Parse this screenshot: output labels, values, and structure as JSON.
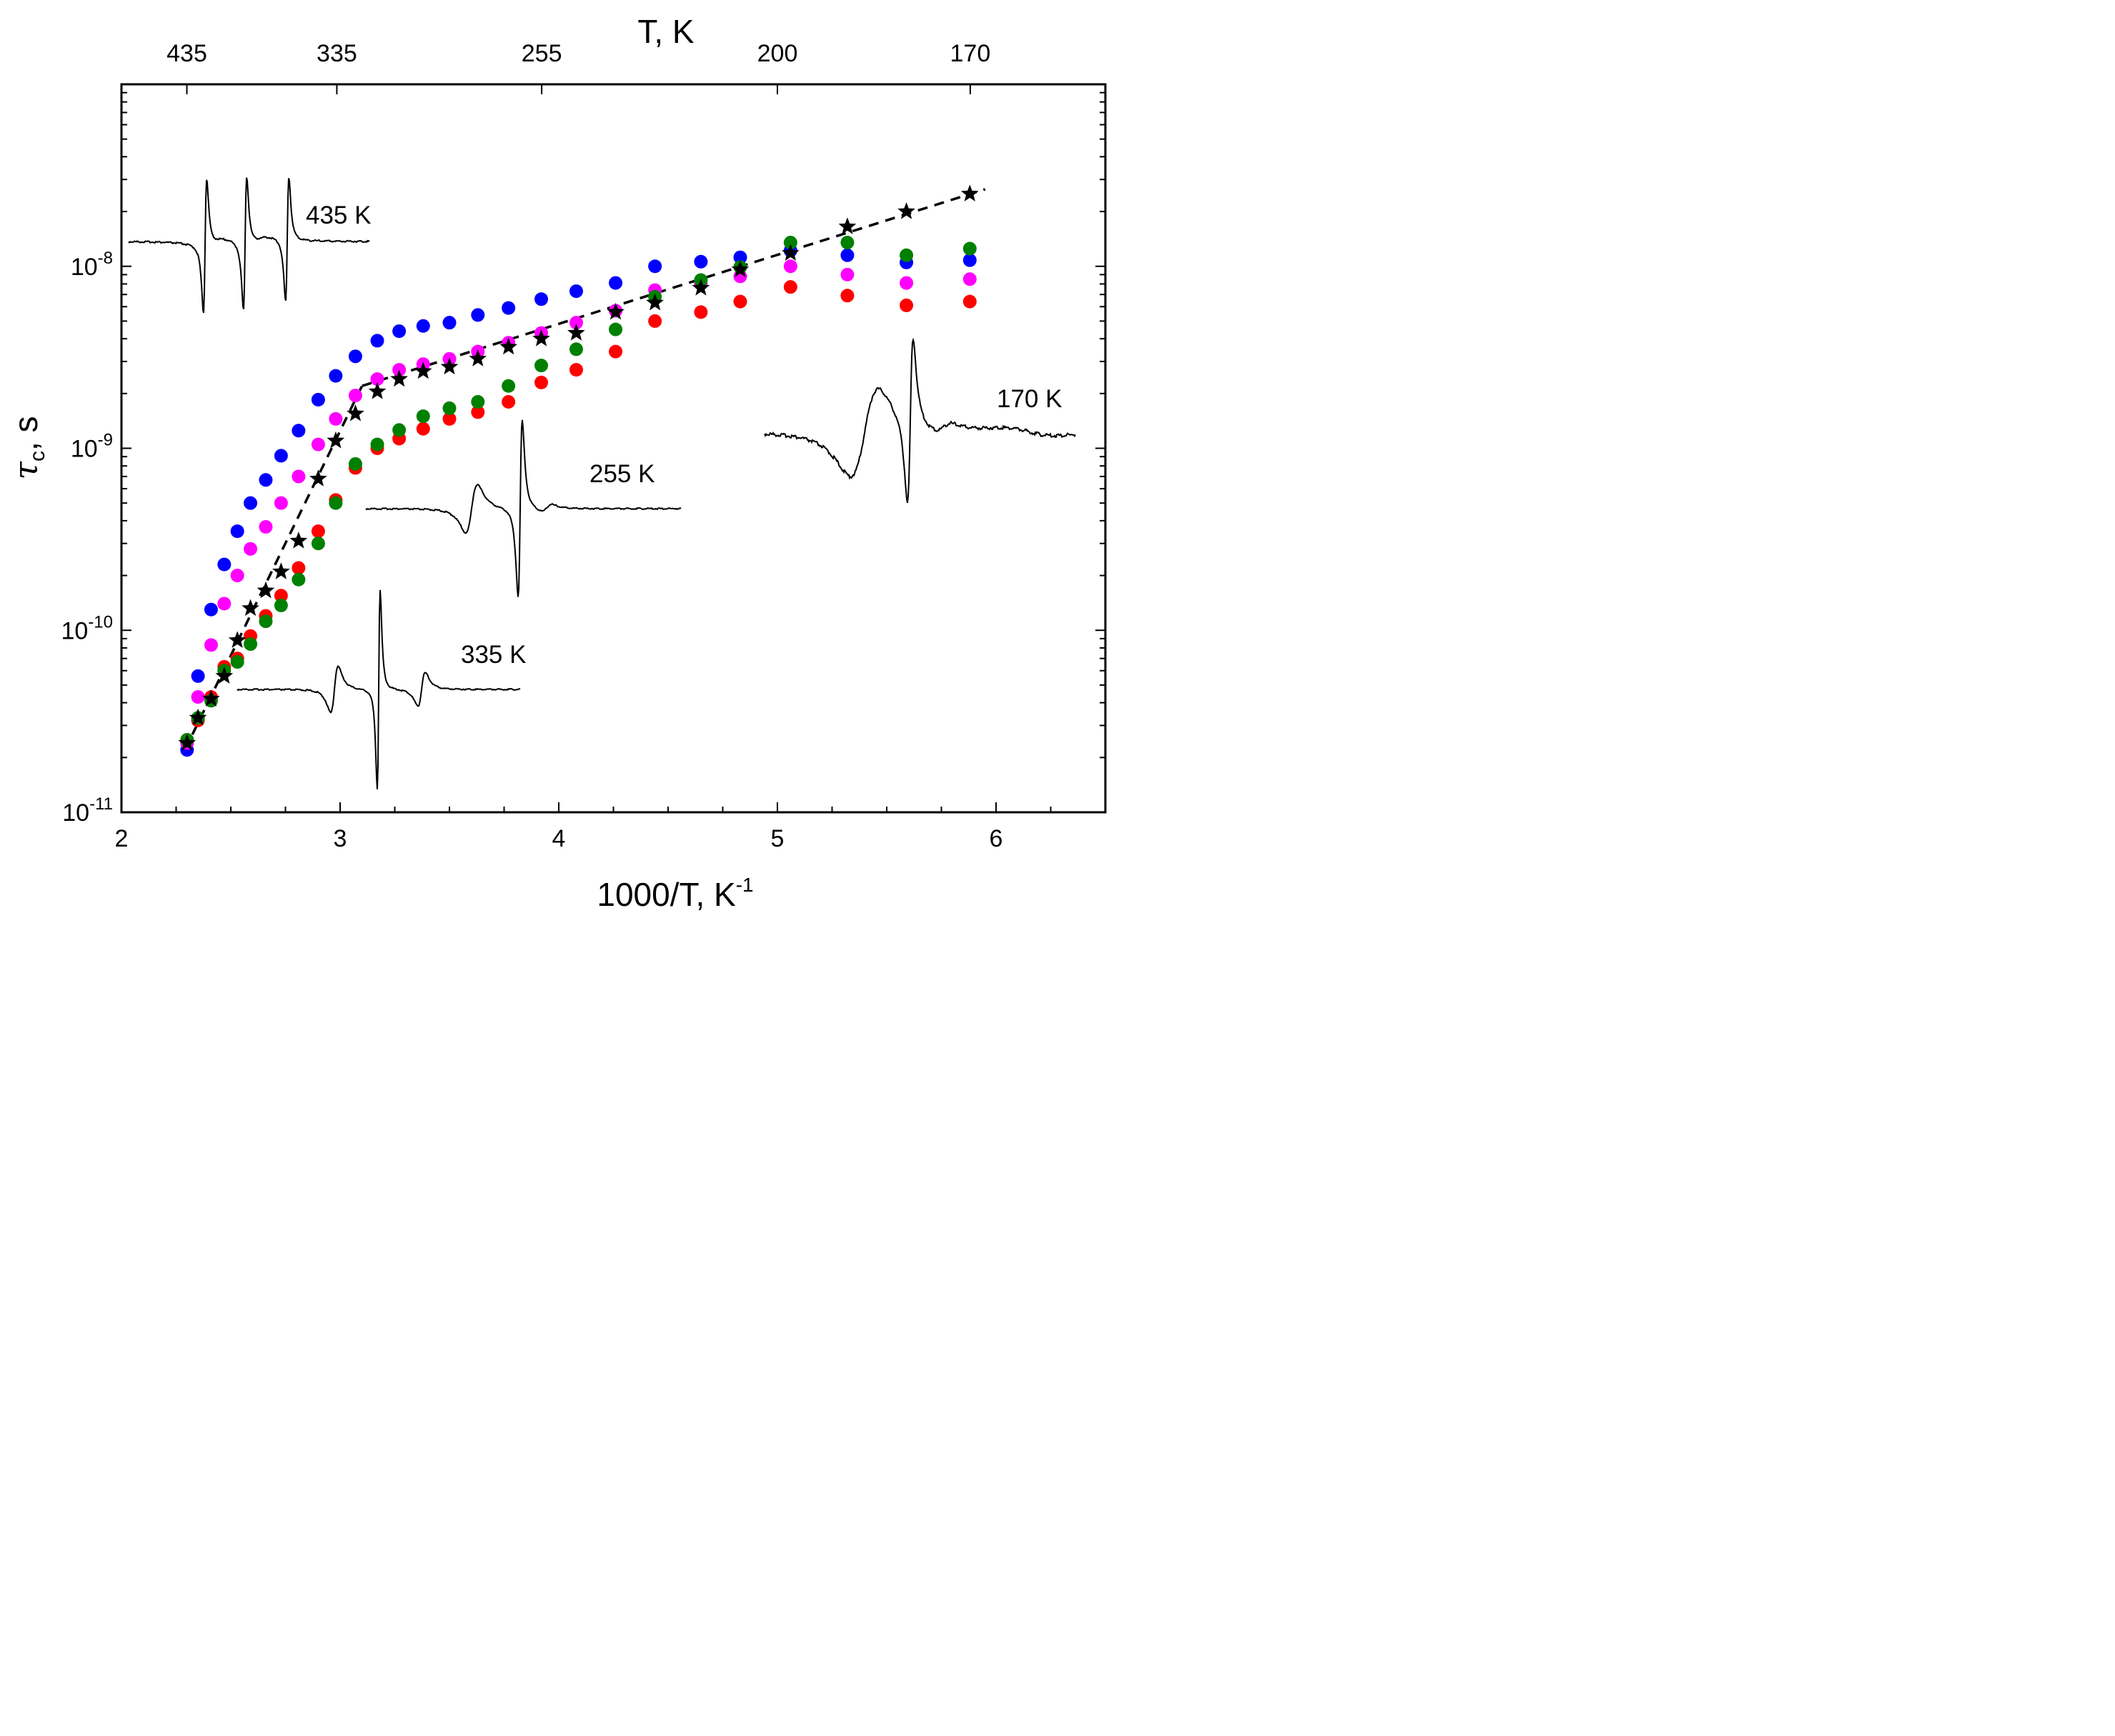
{
  "chart_data": {
    "type": "scatter",
    "xlabel": "1000/T, K",
    "xlabel_sup": "-1",
    "ylabel": "τ",
    "ylabel_sub": "c",
    "ylabel_unit": ", s",
    "xlim": [
      2,
      6.5
    ],
    "ylim": [
      1e-11,
      1e-07
    ],
    "yscale": "log",
    "grid": false,
    "legend": "none",
    "x_ticks": [
      {
        "value": 2,
        "label": "2"
      },
      {
        "value": 3,
        "label": "3"
      },
      {
        "value": 4,
        "label": "4"
      },
      {
        "value": 5,
        "label": "5"
      },
      {
        "value": 6,
        "label": "6"
      }
    ],
    "y_ticks": [
      {
        "value": 1e-11,
        "base": "10",
        "exp": "-11"
      },
      {
        "value": 1e-10,
        "base": "10",
        "exp": "-10"
      },
      {
        "value": 1e-09,
        "base": "10",
        "exp": "-9"
      },
      {
        "value": 1e-08,
        "base": "10",
        "exp": "-8"
      }
    ],
    "top_axis": {
      "title": "T, K",
      "ticks": [
        {
          "x": 2.299,
          "label": "435"
        },
        {
          "x": 2.985,
          "label": "335"
        },
        {
          "x": 3.922,
          "label": "255"
        },
        {
          "x": 5.0,
          "label": "200"
        },
        {
          "x": 5.882,
          "label": "170"
        }
      ]
    },
    "series": [
      {
        "color": "#0000ff",
        "marker": "circle",
        "x": [
          2.3,
          2.35,
          2.41,
          2.47,
          2.53,
          2.59,
          2.66,
          2.73,
          2.81,
          2.9,
          2.98,
          3.07,
          3.17,
          3.27,
          3.38,
          3.5,
          3.63,
          3.77,
          3.92,
          4.08,
          4.26,
          4.44,
          4.65,
          4.83,
          5.06,
          5.32,
          5.59,
          5.88
        ],
        "y": [
          2.2e-11,
          5.6e-11,
          1.3e-10,
          2.3e-10,
          3.5e-10,
          5e-10,
          6.7e-10,
          9.1e-10,
          1.25e-09,
          1.85e-09,
          2.5e-09,
          3.2e-09,
          3.9e-09,
          4.4e-09,
          4.7e-09,
          4.9e-09,
          5.4e-09,
          5.9e-09,
          6.6e-09,
          7.3e-09,
          8.1e-09,
          1e-08,
          1.06e-08,
          1.12e-08,
          1.22e-08,
          1.15e-08,
          1.05e-08,
          1.08e-08
        ]
      },
      {
        "color": "#ff00ff",
        "marker": "circle",
        "x": [
          2.3,
          2.35,
          2.41,
          2.47,
          2.53,
          2.59,
          2.66,
          2.73,
          2.81,
          2.9,
          2.98,
          3.07,
          3.17,
          3.27,
          3.38,
          3.5,
          3.63,
          3.77,
          3.92,
          4.08,
          4.26,
          4.44,
          4.65,
          4.83,
          5.06,
          5.32,
          5.59,
          5.88
        ],
        "y": [
          2.4e-11,
          4.3e-11,
          8.3e-11,
          1.4e-10,
          2e-10,
          2.8e-10,
          3.7e-10,
          5e-10,
          7e-10,
          1.05e-09,
          1.45e-09,
          1.95e-09,
          2.4e-09,
          2.7e-09,
          2.9e-09,
          3.1e-09,
          3.4e-09,
          3.8e-09,
          4.3e-09,
          4.9e-09,
          5.7e-09,
          7.4e-09,
          8e-09,
          8.8e-09,
          1e-08,
          9e-09,
          8.1e-09,
          8.5e-09
        ]
      },
      {
        "color": "#ff0000",
        "marker": "circle",
        "x": [
          2.3,
          2.35,
          2.41,
          2.47,
          2.53,
          2.59,
          2.66,
          2.73,
          2.81,
          2.9,
          2.98,
          3.07,
          3.17,
          3.27,
          3.38,
          3.5,
          3.63,
          3.77,
          3.92,
          4.08,
          4.26,
          4.44,
          4.65,
          4.83,
          5.06,
          5.32,
          5.59,
          5.88
        ],
        "y": [
          2.5e-11,
          3.2e-11,
          4.3e-11,
          6.3e-11,
          7e-11,
          9.3e-11,
          1.2e-10,
          1.55e-10,
          2.2e-10,
          3.5e-10,
          5.2e-10,
          7.8e-10,
          1e-09,
          1.13e-09,
          1.28e-09,
          1.45e-09,
          1.58e-09,
          1.8e-09,
          2.3e-09,
          2.7e-09,
          3.4e-09,
          5e-09,
          5.6e-09,
          6.4e-09,
          7.7e-09,
          6.9e-09,
          6.1e-09,
          6.4e-09
        ]
      },
      {
        "color": "#008000",
        "marker": "circle",
        "x": [
          2.3,
          2.35,
          2.41,
          2.47,
          2.53,
          2.59,
          2.66,
          2.73,
          2.81,
          2.9,
          2.98,
          3.07,
          3.17,
          3.27,
          3.38,
          3.5,
          3.63,
          3.77,
          3.92,
          4.08,
          4.26,
          4.44,
          4.65,
          4.83,
          5.06,
          5.32,
          5.59,
          5.88
        ],
        "y": [
          2.5e-11,
          3.3e-11,
          4.1e-11,
          6e-11,
          6.7e-11,
          8.4e-11,
          1.12e-10,
          1.37e-10,
          1.9e-10,
          3e-10,
          5e-10,
          8.2e-10,
          1.05e-09,
          1.26e-09,
          1.5e-09,
          1.66e-09,
          1.8e-09,
          2.2e-09,
          2.85e-09,
          3.5e-09,
          4.5e-09,
          6.8e-09,
          8.4e-09,
          9.9e-09,
          1.35e-08,
          1.35e-08,
          1.15e-08,
          1.25e-08
        ]
      },
      {
        "color": "#000000",
        "marker": "star",
        "x": [
          2.3,
          2.35,
          2.41,
          2.47,
          2.53,
          2.59,
          2.66,
          2.73,
          2.81,
          2.9,
          2.98,
          3.07,
          3.17,
          3.27,
          3.38,
          3.5,
          3.63,
          3.77,
          3.92,
          4.08,
          4.26,
          4.44,
          4.65,
          4.83,
          5.06,
          5.32,
          5.59,
          5.88
        ],
        "y": [
          2.4e-11,
          3.3e-11,
          4.2e-11,
          5.6e-11,
          8.8e-11,
          1.32e-10,
          1.65e-10,
          2.1e-10,
          3.1e-10,
          6.8e-10,
          1.1e-09,
          1.55e-09,
          2.05e-09,
          2.4e-09,
          2.65e-09,
          2.8e-09,
          3.1e-09,
          3.6e-09,
          4e-09,
          4.3e-09,
          5.6e-09,
          6.3e-09,
          7.6e-09,
          9.6e-09,
          1.18e-08,
          1.65e-08,
          2e-08,
          2.5e-08
        ]
      }
    ],
    "fit_lines": [
      {
        "style": "dashed",
        "color": "#000000",
        "x": [
          2.29,
          3.1
        ],
        "y": [
          2.2e-11,
          2.2e-09
        ]
      },
      {
        "style": "dashed",
        "color": "#000000",
        "x": [
          3.1,
          5.95
        ],
        "y": [
          2.2e-09,
          2.65e-08
        ]
      }
    ],
    "annotations": [
      {
        "text": "435 K"
      },
      {
        "text": "335 K"
      },
      {
        "text": "255 K"
      },
      {
        "text": "170 K"
      }
    ]
  }
}
